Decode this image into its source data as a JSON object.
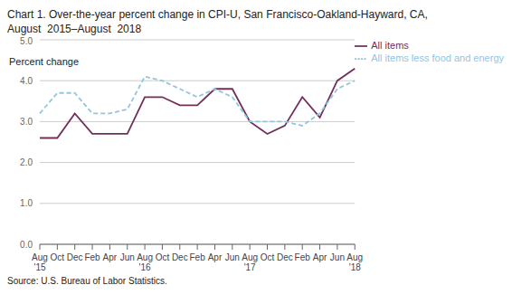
{
  "chart_data": {
    "type": "line",
    "title": "Chart 1. Over-the-year percent change in CPI-U, San Francisco-Oakland-Hayward, CA,",
    "subtitle": "August  2015–August  2018",
    "ylabel": "Percent change",
    "annotations": [
      "Source: U.S. Bureau of Labor Statistics."
    ],
    "categories": [
      "Aug\n'15",
      "Oct",
      "Dec",
      "Feb",
      "Apr",
      "Jun",
      "Aug\n'16",
      "Oct",
      "Dec",
      "Feb",
      "Apr",
      "Jun",
      "Aug\n'17",
      "Oct",
      "Dec",
      "Feb",
      "Apr",
      "Jun",
      "Aug\n'18"
    ],
    "series": [
      {
        "name": "All items",
        "color": "#722f5a",
        "line_style": "solid",
        "values": [
          2.6,
          2.6,
          3.2,
          2.7,
          2.7,
          2.7,
          3.6,
          3.6,
          3.4,
          3.4,
          3.8,
          3.8,
          3.0,
          2.7,
          2.9,
          3.6,
          3.1,
          4.0,
          4.3
        ]
      },
      {
        "name": "All items less food and energy",
        "color": "#92c5de",
        "line_style": "dashed",
        "values": [
          3.2,
          3.7,
          3.7,
          3.2,
          3.2,
          3.3,
          4.1,
          4.0,
          3.8,
          3.6,
          3.8,
          3.6,
          3.0,
          3.0,
          3.0,
          2.9,
          3.2,
          3.8,
          4.0
        ]
      }
    ],
    "ylim": [
      0.0,
      5.0
    ],
    "yticks": [
      {
        "value": 0,
        "label": "0.0"
      },
      {
        "value": 1,
        "label": "1.0"
      },
      {
        "value": 2,
        "label": "2.0"
      },
      {
        "value": 3,
        "label": "3.0"
      },
      {
        "value": 4,
        "label": "4.0"
      },
      {
        "value": 5,
        "label": "5.0"
      }
    ],
    "grid": true,
    "legend": "upper right"
  }
}
